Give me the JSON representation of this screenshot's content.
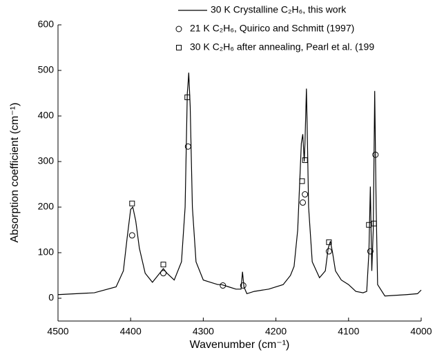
{
  "chart_data": {
    "type": "line",
    "xlabel": "Wavenumber (cm⁻¹)",
    "ylabel": "Absorption coefficient (cm⁻¹)",
    "xlim": [
      4500,
      4000
    ],
    "xticks": [
      4500,
      4400,
      4300,
      4200,
      4100,
      4000
    ],
    "ylim": [
      -50,
      600
    ],
    "yticks": [
      0,
      100,
      200,
      300,
      400,
      500,
      600
    ],
    "series": [
      {
        "name": "30 K Crystalline C₂H₆, this work",
        "type": "line",
        "color": "#000000",
        "x": [
          4500,
          4450,
          4420,
          4410,
          4405,
          4400,
          4397,
          4393,
          4388,
          4380,
          4370,
          4360,
          4355,
          4350,
          4340,
          4330,
          4325,
          4322,
          4321,
          4320,
          4318,
          4315,
          4310,
          4300,
          4290,
          4280,
          4275,
          4265,
          4255,
          4248,
          4246,
          4244,
          4240,
          4230,
          4210,
          4190,
          4180,
          4175,
          4170,
          4165,
          4163,
          4161,
          4160,
          4158,
          4157,
          4155,
          4150,
          4140,
          4132,
          4128,
          4125,
          4122,
          4118,
          4110,
          4100,
          4090,
          4080,
          4075,
          4072,
          4070,
          4068,
          4066,
          4064,
          4062,
          4060,
          4050,
          4020,
          4005,
          4000
        ],
        "values": [
          8,
          12,
          25,
          60,
          130,
          195,
          200,
          170,
          110,
          55,
          35,
          55,
          65,
          55,
          40,
          80,
          200,
          450,
          470,
          495,
          420,
          200,
          80,
          40,
          35,
          30,
          30,
          25,
          20,
          20,
          58,
          25,
          10,
          15,
          20,
          30,
          50,
          70,
          150,
          340,
          360,
          300,
          340,
          460,
          380,
          200,
          80,
          45,
          60,
          110,
          125,
          100,
          60,
          40,
          30,
          15,
          12,
          15,
          100,
          245,
          60,
          150,
          455,
          200,
          30,
          5,
          8,
          10,
          18
        ]
      },
      {
        "name": "21 K C₂H₆, Quirico and Schmitt (1997)",
        "type": "scatter",
        "marker": "circle",
        "color": "#000000",
        "x": [
          4398,
          4355,
          4321,
          4273,
          4245,
          4163,
          4160,
          4127,
          4070,
          4063
        ],
        "values": [
          138,
          55,
          333,
          28,
          28,
          210,
          228,
          103,
          103,
          315
        ]
      },
      {
        "name": "30 K C₂H₆ after annealing, Pearl et al. (199",
        "type": "scatter",
        "marker": "square",
        "color": "#000000",
        "x": [
          4398,
          4355,
          4322,
          4164,
          4160,
          4127,
          4072,
          4065
        ],
        "values": [
          208,
          74,
          441,
          257,
          303,
          123,
          161,
          164
        ]
      }
    ]
  }
}
